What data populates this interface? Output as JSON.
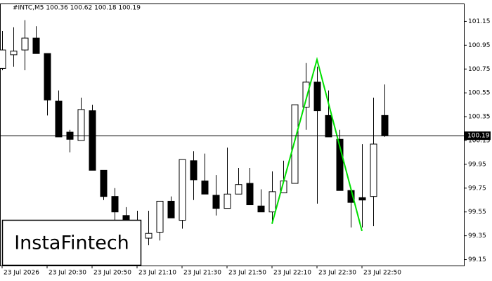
{
  "chart_data": {
    "type": "candlestick",
    "header": "#INTC,M5  100.36 100.62 100.18 100.19",
    "watermark": "InstaFintech",
    "categories": [
      "23 Jul 2026",
      null,
      null,
      null,
      "23 Jul 20:30",
      null,
      null,
      null,
      "23 Jul 20:50",
      null,
      null,
      null,
      "23 Jul 21:10",
      null,
      null,
      null,
      "23 Jul 21:30",
      null,
      null,
      null,
      "23 Jul 21:50",
      null,
      null,
      null,
      "23 Jul 22:10",
      null,
      null,
      null,
      "23 Jul 22:30",
      null,
      null,
      null,
      "23 Jul 22:50",
      null,
      null
    ],
    "open": [
      100.755,
      100.87,
      100.91,
      101.01,
      100.88,
      100.48,
      100.22,
      100.15,
      100.4,
      99.9,
      99.68,
      99.52,
      99.37,
      99.33,
      99.38,
      99.64,
      99.48,
      99.98,
      99.81,
      99.69,
      99.58,
      99.7,
      99.79,
      99.6,
      99.55,
      99.71,
      99.79,
      100.43,
      100.64,
      100.36,
      100.16,
      99.73,
      99.67,
      99.68,
      100.36
    ],
    "high": [
      101.07,
      101.1,
      101.16,
      101.11,
      100.88,
      100.57,
      100.24,
      100.51,
      100.45,
      99.9,
      99.75,
      99.59,
      99.56,
      99.56,
      99.64,
      99.68,
      99.99,
      100.06,
      100.04,
      99.86,
      100.09,
      99.92,
      99.92,
      99.74,
      99.89,
      99.98,
      100.45,
      100.8,
      100.77,
      100.57,
      100.24,
      99.73,
      100.12,
      100.51,
      100.62
    ],
    "low": [
      100.74,
      100.77,
      100.74,
      100.88,
      100.36,
      100.18,
      100.05,
      100.15,
      99.9,
      99.65,
      99.42,
      99.3,
      99.32,
      99.27,
      99.31,
      99.5,
      99.41,
      99.65,
      99.7,
      99.52,
      99.58,
      99.7,
      99.61,
      99.55,
      99.45,
      99.71,
      99.79,
      100.24,
      99.62,
      100.18,
      99.73,
      99.42,
      99.42,
      99.43,
      100.18
    ],
    "close": [
      100.91,
      100.9,
      101.01,
      100.88,
      100.49,
      100.18,
      100.16,
      100.41,
      99.9,
      99.68,
      99.55,
      99.39,
      99.33,
      99.37,
      99.64,
      99.5,
      99.99,
      99.82,
      99.7,
      99.58,
      99.7,
      99.78,
      99.61,
      99.55,
      99.72,
      99.81,
      100.45,
      100.64,
      100.4,
      100.18,
      99.73,
      99.63,
      99.65,
      100.12,
      100.19
    ],
    "up_color": "#ffffff",
    "down_color": "#000000",
    "last_price": 100.19,
    "pattern": {
      "color": "#00e000",
      "index": [
        24,
        28,
        32
      ],
      "values": [
        99.45,
        100.83,
        99.39
      ]
    },
    "ylim": [
      99.1,
      101.3
    ],
    "yticks": [
      101.15,
      100.95,
      100.75,
      100.55,
      100.35,
      100.15,
      99.95,
      99.75,
      99.55,
      99.35,
      99.15
    ]
  }
}
